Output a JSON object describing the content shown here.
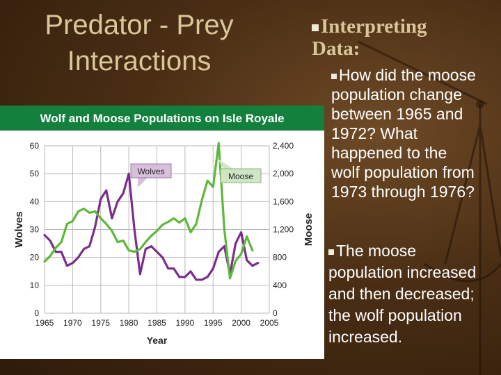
{
  "slide": {
    "title_line1": "Predator - Prey",
    "title_line2": "Interactions"
  },
  "heading": {
    "line1": "Interpreting",
    "line2": "Data:"
  },
  "question": {
    "line1": "How did the moose",
    "line2": "population change",
    "line3": "between 1965 and",
    "line4": "1972? What",
    "line5": "happened to the",
    "line6": "wolf population from",
    "line7": "1973 through 1976?"
  },
  "answer": {
    "line1": "The moose",
    "line2": "population increased",
    "line3": "and then decreased;",
    "line4": "the wolf population",
    "line5": "increased."
  },
  "colors": {
    "wolves": "#7b2d8e",
    "moose": "#5cb83a",
    "banner": "#14803e",
    "grid": "#b9b9b9",
    "wolves_label_bg": "#d8bfdc",
    "moose_label_bg": "#cfe6c4"
  },
  "chart_data": {
    "type": "line",
    "title": "Wolf and Moose Populations on Isle Royale",
    "xlabel": "Year",
    "ylabel_left": "Wolves",
    "ylabel_right": "Moose",
    "xlim": [
      1965,
      2005
    ],
    "ylim_left": [
      0,
      60
    ],
    "ylim_right": [
      0,
      2400
    ],
    "grid": true,
    "x_ticks": [
      "1965",
      "1970",
      "1975",
      "1980",
      "1985",
      "1990",
      "1995",
      "2000",
      "2005"
    ],
    "y_left_ticks": [
      "0",
      "10",
      "20",
      "30",
      "40",
      "50",
      "60"
    ],
    "y_right_ticks": [
      "0",
      "400",
      "800",
      "1,200",
      "1,600",
      "2,000",
      "2,400"
    ],
    "series": [
      {
        "name": "Wolves",
        "axis": "left",
        "x": [
          1965,
          1966,
          1967,
          1968,
          1969,
          1970,
          1971,
          1972,
          1973,
          1974,
          1975,
          1976,
          1977,
          1978,
          1979,
          1980,
          1981,
          1982,
          1983,
          1984,
          1985,
          1986,
          1987,
          1988,
          1989,
          1990,
          1991,
          1992,
          1993,
          1994,
          1995,
          1996,
          1997,
          1998,
          1999,
          2000,
          2001,
          2002,
          2003
        ],
        "values": [
          28,
          26,
          22,
          22,
          17,
          18,
          20,
          23,
          24,
          31,
          41,
          44,
          34,
          40,
          43,
          50,
          30,
          14,
          23,
          24,
          22,
          20,
          16,
          16,
          13,
          13,
          15,
          12,
          12,
          13,
          16,
          22,
          24,
          14,
          25,
          29,
          19,
          17,
          18
        ]
      },
      {
        "name": "Moose",
        "axis": "right",
        "x": [
          1965,
          1966,
          1967,
          1968,
          1969,
          1970,
          1971,
          1972,
          1973,
          1974,
          1975,
          1976,
          1977,
          1978,
          1979,
          1980,
          1981,
          1982,
          1983,
          1984,
          1985,
          1986,
          1987,
          1988,
          1989,
          1990,
          1991,
          1992,
          1993,
          1994,
          1995,
          1996,
          1997,
          1998,
          1999,
          2000,
          2001,
          2002
        ],
        "values": [
          740,
          820,
          940,
          1020,
          1280,
          1320,
          1460,
          1500,
          1440,
          1460,
          1360,
          1280,
          1180,
          1020,
          1040,
          900,
          880,
          920,
          1020,
          1110,
          1180,
          1270,
          1310,
          1360,
          1300,
          1360,
          1160,
          1280,
          1620,
          1900,
          1810,
          2440,
          1200,
          500,
          750,
          850,
          1100,
          900
        ]
      }
    ],
    "annotations": [
      {
        "text": "Wolves",
        "series": "Wolves"
      },
      {
        "text": "Moose",
        "series": "Moose"
      }
    ]
  }
}
